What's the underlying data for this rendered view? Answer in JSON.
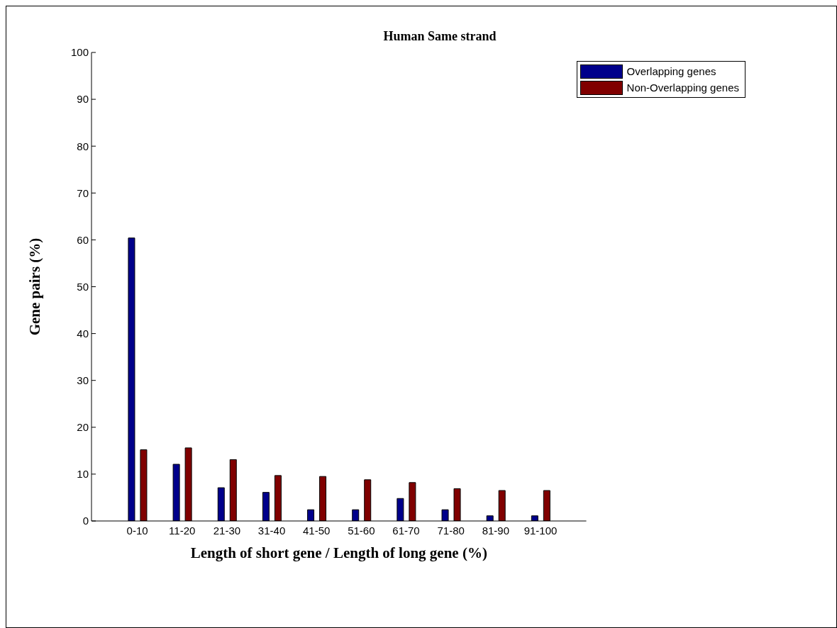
{
  "chart_data": {
    "type": "bar",
    "title": "Human Same strand",
    "xlabel": "Length of short gene / Length of long gene (%)",
    "ylabel": "Gene pairs (%)",
    "categories": [
      "0-10",
      "11-20",
      "21-30",
      "31-40",
      "41-50",
      "51-60",
      "61-70",
      "71-80",
      "81-90",
      "91-100"
    ],
    "series": [
      {
        "name": "Overlapping genes",
        "color": "#00008b",
        "values": [
          60.4,
          12.1,
          7.1,
          6.1,
          2.4,
          2.4,
          4.8,
          2.4,
          1.1,
          1.1
        ]
      },
      {
        "name": "Non-Overlapping genes",
        "color": "#800000",
        "values": [
          15.2,
          15.6,
          13.1,
          9.7,
          9.5,
          8.8,
          8.2,
          6.9,
          6.5,
          6.5
        ]
      }
    ],
    "ylim": [
      0,
      100
    ],
    "yticks": [
      0,
      10,
      20,
      30,
      40,
      50,
      60,
      70,
      80,
      90,
      100
    ],
    "grid": false,
    "legend": "top right"
  }
}
